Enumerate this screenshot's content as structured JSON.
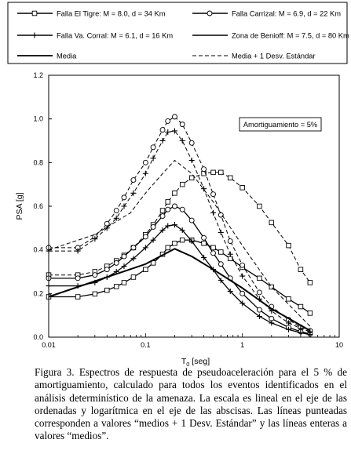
{
  "chart_data": {
    "type": "line",
    "xscale": "log",
    "xlim": [
      0.01,
      10
    ],
    "ylim": [
      0,
      1.2
    ],
    "xticks": [
      "0.01",
      "0.1",
      "1",
      "10"
    ],
    "yticks": [
      "0.0",
      "0.2",
      "0.4",
      "0.6",
      "0.8",
      "1.0",
      "1.2"
    ],
    "xlabel": "T",
    "xlabel_sub": "0",
    "xlabel_unit": " [seg]",
    "ylabel": "PSA [g]",
    "annotation": "Amortiguamiento = 5%",
    "legend_position": "top",
    "legend": [
      {
        "key": "tigre",
        "label": "Falla El Tigre: M = 8.0, d = 34 Km"
      },
      {
        "key": "carrizal",
        "label": "Falla Carrizal: M = 6.9, d = 22 Km"
      },
      {
        "key": "corral",
        "label": "Falla Va. Corral: M = 6.1, d = 16 Km"
      },
      {
        "key": "benioff",
        "label": "Zona de Benioff: M = 7.5, d = 80 Km"
      },
      {
        "key": "media",
        "label": "Media"
      },
      {
        "key": "media_desv",
        "label": "Media + 1 Desv. Estándar"
      }
    ],
    "series": [
      {
        "key": "tigre",
        "statistic": "media",
        "points": [
          [
            0.01,
            0.185
          ],
          [
            0.02,
            0.185
          ],
          [
            0.03,
            0.198
          ],
          [
            0.04,
            0.215
          ],
          [
            0.05,
            0.232
          ],
          [
            0.06,
            0.25
          ],
          [
            0.075,
            0.275
          ],
          [
            0.1,
            0.31
          ],
          [
            0.12,
            0.34
          ],
          [
            0.15,
            0.38
          ],
          [
            0.17,
            0.41
          ],
          [
            0.2,
            0.43
          ],
          [
            0.24,
            0.445
          ],
          [
            0.3,
            0.445
          ],
          [
            0.4,
            0.43
          ],
          [
            0.5,
            0.41
          ],
          [
            0.6,
            0.39
          ],
          [
            0.75,
            0.36
          ],
          [
            1.0,
            0.32
          ],
          [
            1.5,
            0.27
          ],
          [
            2.0,
            0.23
          ],
          [
            3.0,
            0.175
          ],
          [
            4.0,
            0.14
          ],
          [
            5.0,
            0.11
          ]
        ]
      },
      {
        "key": "tigre",
        "statistic": "media_desv",
        "points": [
          [
            0.01,
            0.285
          ],
          [
            0.02,
            0.285
          ],
          [
            0.03,
            0.3
          ],
          [
            0.04,
            0.325
          ],
          [
            0.05,
            0.35
          ],
          [
            0.06,
            0.375
          ],
          [
            0.075,
            0.41
          ],
          [
            0.1,
            0.47
          ],
          [
            0.12,
            0.515
          ],
          [
            0.15,
            0.58
          ],
          [
            0.17,
            0.62
          ],
          [
            0.2,
            0.66
          ],
          [
            0.24,
            0.7
          ],
          [
            0.3,
            0.73
          ],
          [
            0.4,
            0.75
          ],
          [
            0.5,
            0.755
          ],
          [
            0.6,
            0.755
          ],
          [
            0.75,
            0.73
          ],
          [
            1.0,
            0.685
          ],
          [
            1.5,
            0.6
          ],
          [
            2.0,
            0.525
          ],
          [
            3.0,
            0.42
          ],
          [
            4.0,
            0.31
          ],
          [
            5.0,
            0.25
          ]
        ]
      },
      {
        "key": "carrizal",
        "statistic": "media",
        "points": [
          [
            0.01,
            0.27
          ],
          [
            0.02,
            0.27
          ],
          [
            0.03,
            0.285
          ],
          [
            0.04,
            0.31
          ],
          [
            0.05,
            0.34
          ],
          [
            0.06,
            0.37
          ],
          [
            0.075,
            0.41
          ],
          [
            0.1,
            0.46
          ],
          [
            0.12,
            0.505
          ],
          [
            0.15,
            0.555
          ],
          [
            0.17,
            0.585
          ],
          [
            0.2,
            0.6
          ],
          [
            0.24,
            0.585
          ],
          [
            0.3,
            0.535
          ],
          [
            0.4,
            0.455
          ],
          [
            0.5,
            0.385
          ],
          [
            0.6,
            0.335
          ],
          [
            0.75,
            0.27
          ],
          [
            1.0,
            0.2
          ],
          [
            1.5,
            0.125
          ],
          [
            2.0,
            0.085
          ],
          [
            3.0,
            0.045
          ],
          [
            4.0,
            0.025
          ],
          [
            5.0,
            0.015
          ]
        ]
      },
      {
        "key": "carrizal",
        "statistic": "media_desv",
        "points": [
          [
            0.01,
            0.41
          ],
          [
            0.02,
            0.41
          ],
          [
            0.03,
            0.46
          ],
          [
            0.04,
            0.52
          ],
          [
            0.05,
            0.58
          ],
          [
            0.06,
            0.64
          ],
          [
            0.075,
            0.72
          ],
          [
            0.1,
            0.8
          ],
          [
            0.12,
            0.87
          ],
          [
            0.15,
            0.95
          ],
          [
            0.17,
            0.99
          ],
          [
            0.2,
            1.01
          ],
          [
            0.24,
            0.975
          ],
          [
            0.3,
            0.89
          ],
          [
            0.4,
            0.77
          ],
          [
            0.5,
            0.655
          ],
          [
            0.6,
            0.56
          ],
          [
            0.75,
            0.44
          ],
          [
            1.0,
            0.33
          ],
          [
            1.5,
            0.205
          ],
          [
            2.0,
            0.14
          ],
          [
            3.0,
            0.08
          ],
          [
            4.0,
            0.045
          ],
          [
            5.0,
            0.03
          ]
        ]
      },
      {
        "key": "corral",
        "statistic": "media",
        "points": [
          [
            0.01,
            0.235
          ],
          [
            0.02,
            0.235
          ],
          [
            0.03,
            0.25
          ],
          [
            0.04,
            0.275
          ],
          [
            0.05,
            0.3
          ],
          [
            0.06,
            0.325
          ],
          [
            0.075,
            0.36
          ],
          [
            0.1,
            0.41
          ],
          [
            0.12,
            0.445
          ],
          [
            0.15,
            0.49
          ],
          [
            0.17,
            0.51
          ],
          [
            0.2,
            0.515
          ],
          [
            0.24,
            0.49
          ],
          [
            0.3,
            0.44
          ],
          [
            0.4,
            0.365
          ],
          [
            0.5,
            0.31
          ],
          [
            0.6,
            0.26
          ],
          [
            0.75,
            0.21
          ],
          [
            1.0,
            0.155
          ],
          [
            1.5,
            0.095
          ],
          [
            2.0,
            0.065
          ],
          [
            3.0,
            0.035
          ],
          [
            4.0,
            0.02
          ],
          [
            5.0,
            0.012
          ]
        ]
      },
      {
        "key": "corral",
        "statistic": "media_desv",
        "points": [
          [
            0.01,
            0.395
          ],
          [
            0.02,
            0.395
          ],
          [
            0.03,
            0.45
          ],
          [
            0.04,
            0.5
          ],
          [
            0.05,
            0.545
          ],
          [
            0.06,
            0.6
          ],
          [
            0.075,
            0.66
          ],
          [
            0.1,
            0.75
          ],
          [
            0.12,
            0.82
          ],
          [
            0.15,
            0.9
          ],
          [
            0.17,
            0.94
          ],
          [
            0.2,
            0.945
          ],
          [
            0.24,
            0.9
          ],
          [
            0.3,
            0.81
          ],
          [
            0.4,
            0.68
          ],
          [
            0.5,
            0.57
          ],
          [
            0.6,
            0.48
          ],
          [
            0.75,
            0.38
          ],
          [
            1.0,
            0.28
          ],
          [
            1.5,
            0.175
          ],
          [
            2.0,
            0.12
          ],
          [
            3.0,
            0.065
          ],
          [
            4.0,
            0.04
          ],
          [
            5.0,
            0.025
          ]
        ]
      },
      {
        "key": "benioff",
        "statistic": "media",
        "points": [
          [
            0.01,
            0.185
          ],
          [
            0.1,
            0.335
          ],
          [
            0.2,
            0.405
          ],
          [
            0.3,
            0.37
          ],
          [
            0.5,
            0.31
          ],
          [
            1.0,
            0.225
          ],
          [
            2.0,
            0.13
          ],
          [
            5.0,
            0.03
          ]
        ]
      },
      {
        "key": "benioff",
        "statistic": "media_desv",
        "points": [
          [
            0.01,
            0.4
          ],
          [
            0.03,
            0.47
          ],
          [
            0.07,
            0.57
          ],
          [
            0.1,
            0.66
          ],
          [
            0.15,
            0.75
          ],
          [
            0.2,
            0.81
          ],
          [
            0.3,
            0.75
          ],
          [
            0.5,
            0.62
          ],
          [
            1.0,
            0.42
          ],
          [
            2.0,
            0.23
          ],
          [
            5.0,
            0.05
          ]
        ]
      }
    ]
  },
  "caption": "Figura 3. Espectros de respuesta de pseudoaceleración para el 5 % de amortiguamiento, calculado para todos los eventos identificados en el análisis determinístico de la amenaza. La escala es lineal en el eje de las ordenadas y logarítmica en el eje de las abscisas. Las líneas punteadas corresponden a valores “medios + 1 Desv. Estándar” y las líneas enteras a valores “medios”."
}
